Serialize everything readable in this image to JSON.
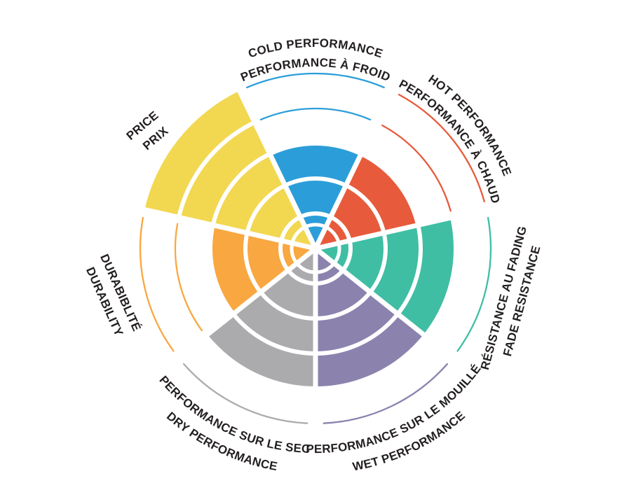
{
  "chart_data": {
    "type": "radar-wedges",
    "title": "",
    "scale": {
      "levels": 5,
      "ring_radius_step": 50
    },
    "legend_position": "around-circle",
    "grid": {
      "color": "#FFFFFF",
      "label_color": "#231F20",
      "background": "#FFFFFF"
    },
    "categories": [
      {
        "id": "cold",
        "label_en": "COLD PERFORMANCE",
        "label_fr": "PERFORMANCE À FROID",
        "value": 3,
        "max": 5,
        "color": "#2B9ED9",
        "label_style": "curved-top"
      },
      {
        "id": "hot",
        "label_en": "HOT PERFORMANCE",
        "label_fr": "PERFORMANCE À CHAUD",
        "value": 3,
        "max": 5,
        "color": "#E75B3C",
        "label_style": "curved-top"
      },
      {
        "id": "fade",
        "label_en": "FADE RESISTANCE",
        "label_fr": "RÉSISTANCE AU FADING",
        "value": 4,
        "max": 5,
        "color": "#3FBEA4",
        "label_style": "straight-rotated"
      },
      {
        "id": "wet",
        "label_en": "WET PERFORMANCE",
        "label_fr": "PERFORMANCE SUR LE MOUILLÉ",
        "value": 4,
        "max": 5,
        "color": "#8B83AE",
        "label_style": "curved-bottom"
      },
      {
        "id": "dry",
        "label_en": "DRY PERFORMANCE",
        "label_fr": "PERFORMANCE SUR LE SEC",
        "value": 4,
        "max": 5,
        "color": "#ABAAAD",
        "label_style": "curved-bottom"
      },
      {
        "id": "durability",
        "label_en": "DURABILITY",
        "label_fr": "DURABIBLITÉ",
        "value": 3,
        "max": 5,
        "color": "#F9A740",
        "label_style": "straight-rotated"
      },
      {
        "id": "price",
        "label_en": "PRICE",
        "label_fr": "PRIX",
        "value": 5,
        "max": 5,
        "color": "#F2D751",
        "label_style": "straight-rotated"
      }
    ]
  }
}
